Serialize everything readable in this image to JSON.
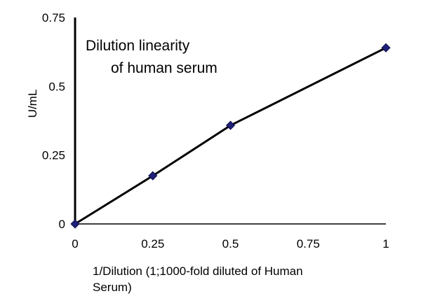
{
  "chart_data": {
    "type": "line",
    "title_lines": [
      "Dilution  linearity",
      "of human  serum"
    ],
    "xlabel_lines": [
      "1/Dilution (1;1000-fold diluted of  Human",
      "Serum)"
    ],
    "ylabel": "U/mL",
    "xlim": [
      0,
      1
    ],
    "ylim": [
      0,
      0.75
    ],
    "x_ticks": [
      0,
      0.25,
      0.5,
      0.75,
      1
    ],
    "x_tick_labels": [
      "0",
      "0.25",
      "0.5",
      "0.75",
      "1"
    ],
    "y_ticks": [
      0,
      0.25,
      0.5,
      0.75
    ],
    "y_tick_labels": [
      "0",
      "0.25",
      "0.5",
      "0.75"
    ],
    "grid": false,
    "legend": false,
    "series": [
      {
        "x": [
          0,
          0.25,
          0.5,
          1
        ],
        "y": [
          0,
          0.175,
          0.358,
          0.64
        ],
        "line_color": "#000000",
        "marker": "diamond",
        "marker_color": "#1f1f7a"
      }
    ]
  }
}
